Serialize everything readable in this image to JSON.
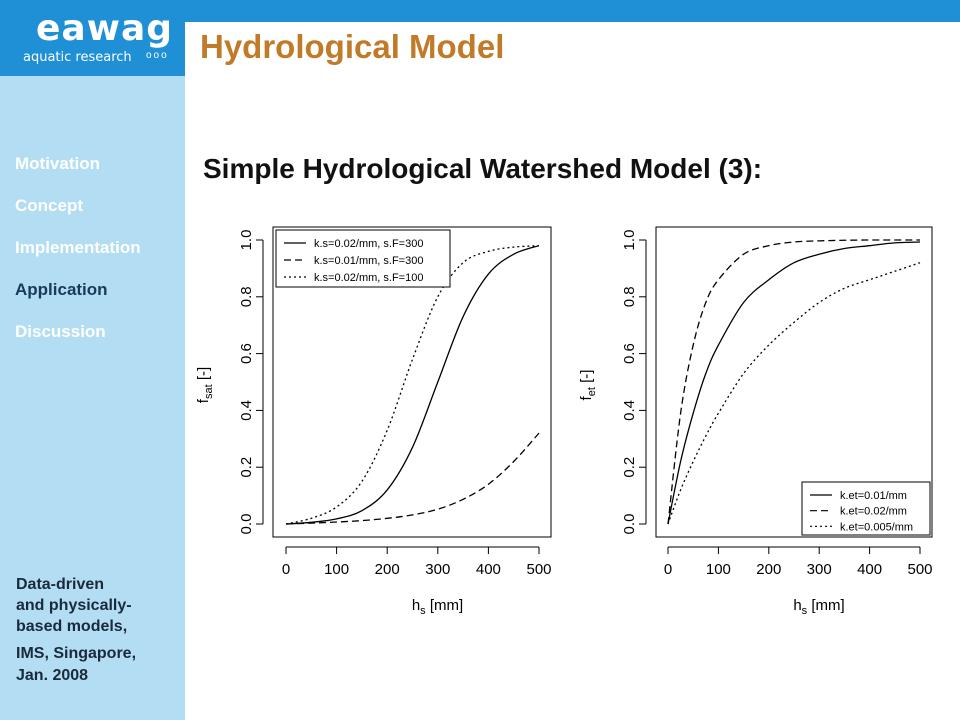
{
  "logo": {
    "main": "eawag",
    "sub": "aquatic research",
    "dots": "ooo"
  },
  "title": "Hydrological Model",
  "subtitle": "Simple Hydrological Watershed Model (3):",
  "nav": [
    {
      "label": "Motivation"
    },
    {
      "label": "Concept"
    },
    {
      "label": "Implementation"
    },
    {
      "label": "Application"
    },
    {
      "label": "Discussion"
    }
  ],
  "footer": {
    "line1": "Data-driven",
    "line2": "and physically-",
    "line3": "based models,",
    "line4": "IMS, Singapore,",
    "line5": "Jan. 2008"
  },
  "colors": {
    "bar": "#1f8fd6",
    "sidebar": "#b3ddf3",
    "title": "#c07a28"
  },
  "chart_data": [
    {
      "type": "line",
      "xlabel_main": "h",
      "xlabel_sub": "s",
      "xlabel_unit": "[mm]",
      "ylabel_main": "f",
      "ylabel_sub": "sat",
      "ylabel_unit": "[-]",
      "xlim": [
        0,
        500
      ],
      "ylim": [
        0,
        1
      ],
      "xticks": [
        "0",
        "100",
        "200",
        "300",
        "400",
        "500"
      ],
      "yticks": [
        "0.0",
        "0.2",
        "0.4",
        "0.6",
        "0.8",
        "1.0"
      ],
      "legend_position": "top-left",
      "series": [
        {
          "name": "k.s=0.02/mm, s.F=300",
          "dash": "solid",
          "x": [
            0,
            50,
            100,
            150,
            200,
            250,
            300,
            350,
            400,
            450,
            500
          ],
          "y": [
            0.0,
            0.006,
            0.018,
            0.047,
            0.12,
            0.27,
            0.5,
            0.73,
            0.88,
            0.95,
            0.98
          ]
        },
        {
          "name": "k.s=0.01/mm, s.F=300",
          "dash": "dashed",
          "x": [
            0,
            50,
            100,
            150,
            200,
            250,
            300,
            350,
            400,
            450,
            500
          ],
          "y": [
            0.0,
            0.003,
            0.007,
            0.012,
            0.02,
            0.032,
            0.052,
            0.087,
            0.14,
            0.22,
            0.32
          ]
        },
        {
          "name": "k.s=0.02/mm, s.F=100",
          "dash": "dotted",
          "x": [
            0,
            50,
            100,
            150,
            200,
            250,
            300,
            350,
            400,
            450,
            500
          ],
          "y": [
            0.0,
            0.02,
            0.06,
            0.15,
            0.33,
            0.58,
            0.8,
            0.92,
            0.96,
            0.975,
            0.98
          ]
        }
      ]
    },
    {
      "type": "line",
      "xlabel_main": "h",
      "xlabel_sub": "s",
      "xlabel_unit": "[mm]",
      "ylabel_main": "f",
      "ylabel_sub": "et",
      "ylabel_unit": "[-]",
      "xlim": [
        0,
        500
      ],
      "ylim": [
        0,
        1
      ],
      "xticks": [
        "0",
        "100",
        "200",
        "300",
        "400",
        "500"
      ],
      "yticks": [
        "0.0",
        "0.2",
        "0.4",
        "0.6",
        "0.8",
        "1.0"
      ],
      "legend_position": "bottom-right",
      "series": [
        {
          "name": "k.et=0.01/mm",
          "dash": "solid",
          "x": [
            0,
            25,
            50,
            75,
            100,
            150,
            200,
            250,
            300,
            350,
            400,
            450,
            500
          ],
          "y": [
            0.0,
            0.22,
            0.39,
            0.53,
            0.63,
            0.78,
            0.86,
            0.92,
            0.95,
            0.97,
            0.98,
            0.99,
            0.993
          ]
        },
        {
          "name": "k.et=0.02/mm",
          "dash": "dashed",
          "x": [
            0,
            25,
            50,
            75,
            100,
            150,
            200,
            250,
            300,
            350,
            400,
            450,
            500
          ],
          "y": [
            0.0,
            0.39,
            0.63,
            0.78,
            0.86,
            0.95,
            0.98,
            0.993,
            0.997,
            0.999,
            1.0,
            1.0,
            1.0
          ]
        },
        {
          "name": "k.et=0.005/mm",
          "dash": "dotted",
          "x": [
            0,
            25,
            50,
            75,
            100,
            150,
            200,
            250,
            300,
            350,
            400,
            450,
            500
          ],
          "y": [
            0.0,
            0.12,
            0.22,
            0.31,
            0.39,
            0.53,
            0.63,
            0.71,
            0.78,
            0.83,
            0.86,
            0.89,
            0.92
          ]
        }
      ]
    }
  ]
}
